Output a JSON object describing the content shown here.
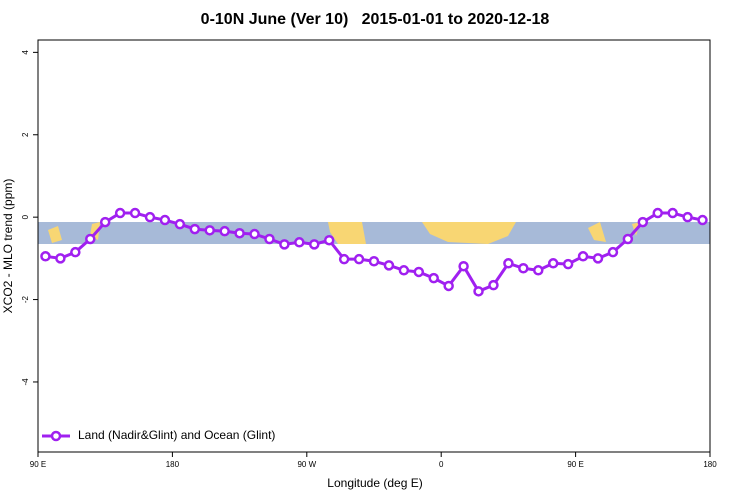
{
  "chart_data": {
    "type": "line",
    "title": "0-10N June (Ver 10)   2015-01-01 to 2020-12-18",
    "xlabel": "Longitude (deg E)",
    "ylabel": "XCO2 - MLO trend (ppm)",
    "xlim": [
      90,
      540
    ],
    "ylim": [
      -5.7,
      4.3
    ],
    "xticks": [
      {
        "value": 90,
        "label": "90 E"
      },
      {
        "value": 180,
        "label": "180"
      },
      {
        "value": 270,
        "label": "90 W"
      },
      {
        "value": 360,
        "label": "0"
      },
      {
        "value": 450,
        "label": "90 E"
      },
      {
        "value": 540,
        "label": "180"
      }
    ],
    "yticks": [
      -4,
      -2,
      0,
      2,
      4
    ],
    "legend": "bottomleft",
    "x": [
      95,
      105,
      115,
      125,
      135,
      145,
      155,
      165,
      175,
      185,
      195,
      205,
      215,
      225,
      235,
      245,
      255,
      265,
      275,
      285,
      295,
      305,
      315,
      325,
      335,
      345,
      355,
      365,
      375,
      385,
      395,
      405,
      415,
      425,
      435,
      445,
      455,
      465,
      475,
      485,
      495,
      505,
      515,
      525,
      535
    ],
    "series": [
      {
        "name": "Land (Nadir&Glint) and Ocean (Glint)",
        "color": "#a020f0",
        "values": [
          -0.95,
          -1.0,
          -0.85,
          -0.53,
          -0.12,
          0.1,
          0.1,
          0,
          -0.07,
          -0.17,
          -0.29,
          -0.32,
          -0.34,
          -0.39,
          -0.41,
          -0.53,
          -0.66,
          -0.61,
          -0.66,
          -0.56,
          -1.02,
          -1.02,
          -1.07,
          -1.17,
          -1.29,
          -1.33,
          -1.48,
          -1.67,
          -1.19,
          -1.8,
          -1.65,
          -1.12,
          -1.24,
          -1.29,
          -1.12,
          -1.14,
          -0.95,
          -1.0,
          -0.85,
          -0.53,
          -0.12,
          0.1,
          0.1,
          0,
          -0.07
        ]
      }
    ]
  }
}
